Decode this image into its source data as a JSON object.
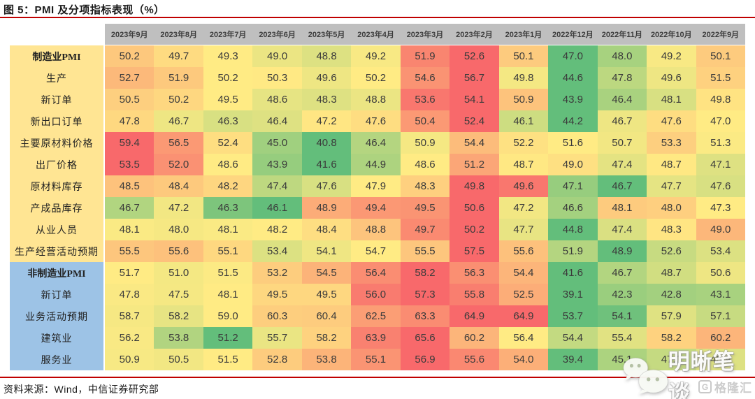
{
  "title": "图 5：PMI 及分项指标表现（%）",
  "source": "资料来源：Wind，中信证券研究部",
  "watermark_text": "明晰笔谈",
  "brand_logo_text": "格隆汇",
  "brand_logo_letter": "G",
  "colors": {
    "accent_rule_red": "#C00000",
    "header_bg": "#BFBFBF",
    "label_bg_manufacturing": "#FFE593",
    "label_bg_nonmanufacturing": "#9DC3E6",
    "scale_min_green": "#63BE7B",
    "scale_mid_yellow": "#FFEB84",
    "scale_max_red": "#F8696B"
  },
  "chart_data": {
    "type": "heatmap",
    "title": "PMI 及分项指标表现（%）",
    "legend_position": "none",
    "color_scale": "per-row 3-color scale: row min = #63BE7B (green), row median = #FFEB84 (yellow), row max = #F8696B (red)",
    "columns": [
      "2023年9月",
      "2023年8月",
      "2023年7月",
      "2023年6月",
      "2023年5月",
      "2023年4月",
      "2023年3月",
      "2023年2月",
      "2023年1月",
      "2022年12月",
      "2022年11月",
      "2022年10月",
      "2022年9月"
    ],
    "rows": [
      {
        "label": "制造业PMI",
        "group": "manufacturing",
        "bold": true,
        "values": [
          50.2,
          49.7,
          49.3,
          49.0,
          48.8,
          49.2,
          51.9,
          52.6,
          50.1,
          47.0,
          48.0,
          49.2,
          50.1
        ]
      },
      {
        "label": "生产",
        "group": "manufacturing",
        "bold": false,
        "values": [
          52.7,
          51.9,
          50.2,
          50.3,
          49.6,
          50.2,
          54.6,
          56.7,
          49.8,
          44.6,
          47.8,
          49.6,
          51.5
        ]
      },
      {
        "label": "新订单",
        "group": "manufacturing",
        "bold": false,
        "values": [
          50.5,
          50.2,
          49.5,
          48.6,
          48.3,
          48.8,
          53.6,
          54.1,
          50.9,
          43.9,
          46.4,
          48.1,
          49.8
        ]
      },
      {
        "label": "新出口订单",
        "group": "manufacturing",
        "bold": false,
        "values": [
          47.8,
          46.7,
          46.3,
          46.4,
          47.2,
          47.6,
          50.4,
          52.4,
          46.1,
          44.2,
          46.7,
          47.6,
          47.0
        ]
      },
      {
        "label": "主要原材料价格",
        "group": "manufacturing",
        "bold": false,
        "values": [
          59.4,
          56.5,
          52.4,
          45.0,
          40.8,
          46.4,
          50.9,
          54.4,
          52.2,
          51.6,
          50.7,
          53.3,
          51.3
        ]
      },
      {
        "label": "出厂价格",
        "group": "manufacturing",
        "bold": false,
        "values": [
          53.5,
          52.0,
          48.6,
          43.9,
          41.6,
          44.9,
          48.6,
          51.2,
          48.7,
          49.0,
          47.4,
          48.7,
          47.1
        ]
      },
      {
        "label": "原材料库存",
        "group": "manufacturing",
        "bold": false,
        "values": [
          48.5,
          48.4,
          48.2,
          47.4,
          47.6,
          47.9,
          48.3,
          49.8,
          49.6,
          47.1,
          46.7,
          47.7,
          47.6
        ]
      },
      {
        "label": "产成品库存",
        "group": "manufacturing",
        "bold": false,
        "values": [
          46.7,
          47.2,
          46.3,
          46.1,
          48.9,
          49.4,
          49.5,
          50.6,
          47.2,
          46.6,
          48.1,
          48.0,
          47.3
        ]
      },
      {
        "label": "从业人员",
        "group": "manufacturing",
        "bold": false,
        "values": [
          48.1,
          48.0,
          48.1,
          48.2,
          48.4,
          48.8,
          49.7,
          50.2,
          47.7,
          44.8,
          47.4,
          48.3,
          49.0
        ]
      },
      {
        "label": "生产经营活动预期",
        "group": "manufacturing",
        "bold": false,
        "values": [
          55.5,
          55.6,
          55.1,
          53.4,
          54.1,
          54.7,
          55.5,
          57.5,
          55.6,
          51.9,
          48.9,
          52.6,
          53.4
        ]
      },
      {
        "label": "非制造业PMI",
        "group": "nonmanufacturing",
        "bold": true,
        "values": [
          51.7,
          51.0,
          51.5,
          53.2,
          54.5,
          56.4,
          58.2,
          56.3,
          54.4,
          41.6,
          46.7,
          48.7,
          50.6
        ]
      },
      {
        "label": "新订单",
        "group": "nonmanufacturing",
        "bold": false,
        "values": [
          47.8,
          47.5,
          48.1,
          49.5,
          49.5,
          56.0,
          57.3,
          55.8,
          52.5,
          39.1,
          42.3,
          42.8,
          43.1
        ]
      },
      {
        "label": "业务活动预期",
        "group": "nonmanufacturing",
        "bold": false,
        "values": [
          58.7,
          58.2,
          59.0,
          60.3,
          60.4,
          62.5,
          63.3,
          64.9,
          64.9,
          53.7,
          54.1,
          57.9,
          57.1
        ]
      },
      {
        "label": "建筑业",
        "group": "nonmanufacturing",
        "bold": false,
        "values": [
          56.2,
          53.8,
          51.2,
          55.7,
          58.2,
          63.9,
          65.6,
          60.2,
          56.4,
          54.4,
          55.4,
          58.2,
          60.2
        ]
      },
      {
        "label": "服务业",
        "group": "nonmanufacturing",
        "bold": false,
        "values": [
          50.9,
          50.5,
          51.5,
          52.8,
          53.8,
          55.1,
          56.9,
          55.6,
          54.0,
          39.4,
          45.1,
          47.0,
          48.9
        ]
      }
    ]
  }
}
